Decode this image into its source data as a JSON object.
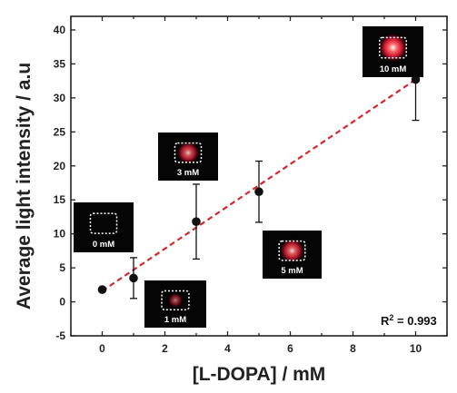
{
  "chart_data": {
    "type": "scatter",
    "xlabel": "[L-DOPA] / mM",
    "ylabel": "Average light intensity / a.u",
    "xlim": [
      -1,
      11
    ],
    "ylim": [
      -5,
      42
    ],
    "x_ticks": [
      0,
      2,
      4,
      6,
      8,
      10
    ],
    "y_ticks": [
      -5,
      0,
      5,
      10,
      15,
      20,
      25,
      30,
      35,
      40
    ],
    "grid": false,
    "series": [
      {
        "x": [
          0,
          1,
          3,
          5,
          10
        ],
        "y": [
          1.8,
          3.5,
          11.8,
          16.2,
          32.7
        ],
        "error": [
          0.3,
          3.0,
          5.5,
          4.5,
          6.0
        ],
        "marker_color": "#111111"
      }
    ],
    "fit_line": {
      "x": [
        0,
        10
      ],
      "y": [
        1.6,
        32.7
      ],
      "color": "#d62728",
      "style": "dashed"
    },
    "annotation": {
      "r2_prefix": "R",
      "r2_sup": "2",
      "r2_value": " = 0.993"
    },
    "insets": [
      {
        "label": "0 mM",
        "glow": 0.0
      },
      {
        "label": "1 mM",
        "glow": 0.35
      },
      {
        "label": "3 mM",
        "glow": 0.7
      },
      {
        "label": "5 mM",
        "glow": 0.8
      },
      {
        "label": "10 mM",
        "glow": 1.0
      }
    ]
  }
}
